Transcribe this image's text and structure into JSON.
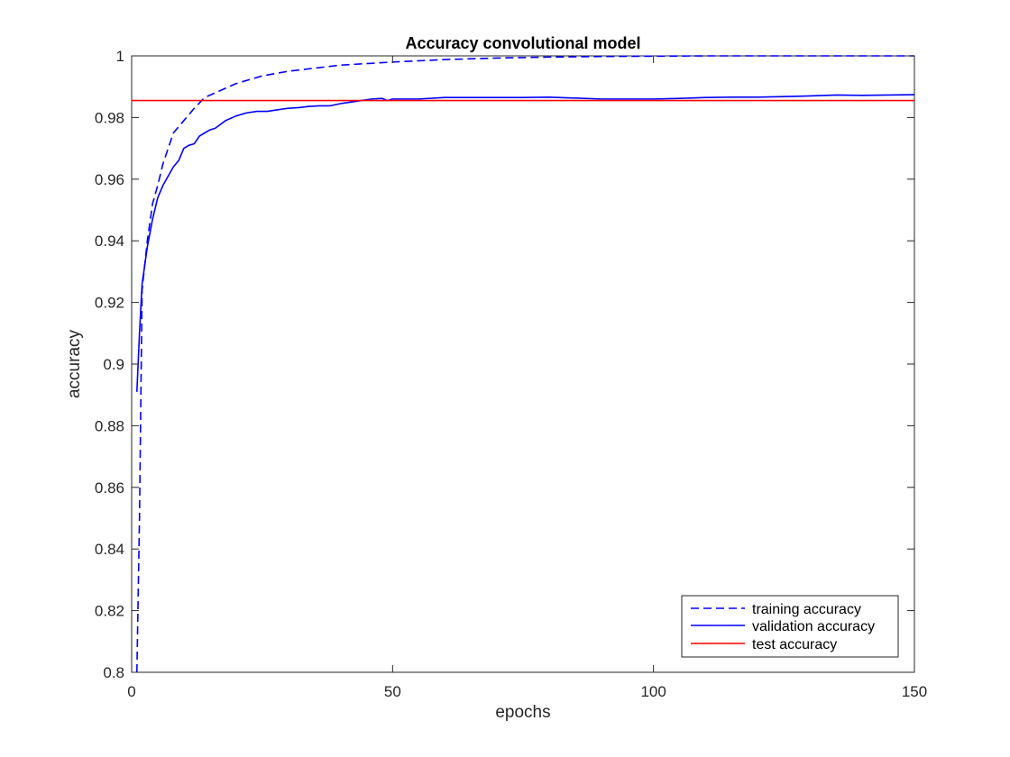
{
  "chart_data": {
    "type": "line",
    "title": "Accuracy convolutional model",
    "xlabel": "epochs",
    "ylabel": "accuracy",
    "xlim": [
      0,
      150
    ],
    "ylim": [
      0.8,
      1
    ],
    "x_ticks": [
      0,
      50,
      100,
      150
    ],
    "x_tick_labels": [
      "0",
      "50",
      "100",
      "150"
    ],
    "y_ticks": [
      0.8,
      0.82,
      0.84,
      0.86,
      0.88,
      0.9,
      0.92,
      0.94,
      0.96,
      0.98,
      1
    ],
    "y_tick_labels": [
      "0.8",
      "0.82",
      "0.84",
      "0.86",
      "0.88",
      "0.9",
      "0.92",
      "0.94",
      "0.96",
      "0.98",
      "1"
    ],
    "grid": false,
    "legend_position": "bottom-right",
    "series": [
      {
        "name": "training accuracy",
        "style": "dashed",
        "color": "#0000ff",
        "points": [
          [
            1,
            0.8
          ],
          [
            1.5,
            0.85
          ],
          [
            2,
            0.924
          ],
          [
            3,
            0.94
          ],
          [
            4,
            0.952
          ],
          [
            5,
            0.958
          ],
          [
            6,
            0.965
          ],
          [
            7,
            0.97
          ],
          [
            8,
            0.975
          ],
          [
            10,
            0.979
          ],
          [
            12,
            0.983
          ],
          [
            14,
            0.9865
          ],
          [
            16,
            0.988
          ],
          [
            18,
            0.9895
          ],
          [
            20,
            0.991
          ],
          [
            25,
            0.9935
          ],
          [
            30,
            0.995
          ],
          [
            35,
            0.996
          ],
          [
            40,
            0.997
          ],
          [
            45,
            0.9975
          ],
          [
            50,
            0.998
          ],
          [
            60,
            0.9988
          ],
          [
            70,
            0.9993
          ],
          [
            80,
            0.9996
          ],
          [
            90,
            0.9998
          ],
          [
            100,
            0.9999
          ],
          [
            110,
            1.0
          ],
          [
            150,
            1.0
          ]
        ]
      },
      {
        "name": "validation accuracy",
        "style": "solid",
        "color": "#0000ff",
        "points": [
          [
            1,
            0.891
          ],
          [
            1.5,
            0.91
          ],
          [
            2,
            0.926
          ],
          [
            3,
            0.938
          ],
          [
            4,
            0.947
          ],
          [
            5,
            0.954
          ],
          [
            6,
            0.958
          ],
          [
            7,
            0.961
          ],
          [
            8,
            0.964
          ],
          [
            9,
            0.966
          ],
          [
            10,
            0.97
          ],
          [
            11,
            0.971
          ],
          [
            12,
            0.9715
          ],
          [
            13,
            0.974
          ],
          [
            14,
            0.975
          ],
          [
            15,
            0.976
          ],
          [
            16,
            0.9765
          ],
          [
            18,
            0.979
          ],
          [
            20,
            0.9805
          ],
          [
            22,
            0.9815
          ],
          [
            24,
            0.982
          ],
          [
            26,
            0.982
          ],
          [
            28,
            0.9825
          ],
          [
            30,
            0.983
          ],
          [
            32,
            0.9832
          ],
          [
            34,
            0.9836
          ],
          [
            36,
            0.9838
          ],
          [
            38,
            0.9838
          ],
          [
            40,
            0.9845
          ],
          [
            42,
            0.985
          ],
          [
            44,
            0.9855
          ],
          [
            46,
            0.986
          ],
          [
            48,
            0.9862
          ],
          [
            49,
            0.9855
          ],
          [
            50,
            0.986
          ],
          [
            55,
            0.986
          ],
          [
            60,
            0.9865
          ],
          [
            65,
            0.9865
          ],
          [
            70,
            0.9865
          ],
          [
            75,
            0.9865
          ],
          [
            80,
            0.9866
          ],
          [
            85,
            0.9863
          ],
          [
            90,
            0.986
          ],
          [
            95,
            0.986
          ],
          [
            100,
            0.986
          ],
          [
            105,
            0.9862
          ],
          [
            110,
            0.9865
          ],
          [
            115,
            0.9866
          ],
          [
            120,
            0.9866
          ],
          [
            125,
            0.9868
          ],
          [
            130,
            0.987
          ],
          [
            135,
            0.9873
          ],
          [
            140,
            0.9872
          ],
          [
            145,
            0.9873
          ],
          [
            150,
            0.9874
          ]
        ]
      },
      {
        "name": "test accuracy",
        "style": "solid",
        "color": "#ff0000",
        "points": [
          [
            0,
            0.9855
          ],
          [
            150,
            0.9855
          ]
        ]
      }
    ]
  }
}
